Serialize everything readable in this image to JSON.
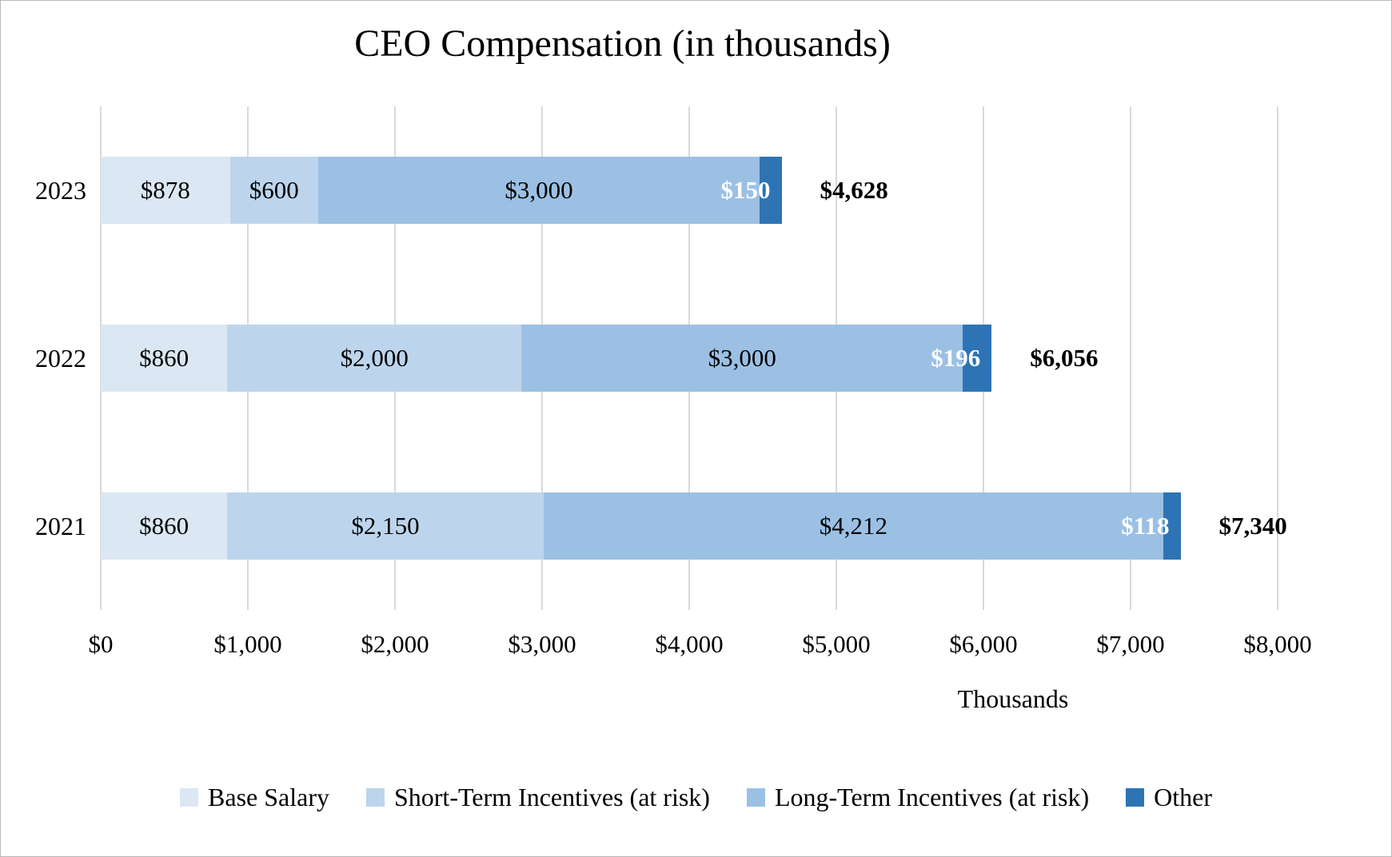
{
  "title": "CEO Compensation (in thousands)",
  "colors": {
    "base_salary": "#dbe7f3",
    "short_term": "#bdd5ec",
    "long_term": "#9cc0e3",
    "other": "#2e74b5",
    "gridline": "#d9d9d9",
    "inside_end_label": "#ffffff",
    "text": "#000000"
  },
  "chart_data": {
    "type": "bar",
    "orientation": "horizontal",
    "stacked": true,
    "title": "CEO Compensation (in thousands)",
    "categories": [
      "2023",
      "2022",
      "2021"
    ],
    "series": [
      {
        "name": "Base Salary",
        "color": "#dbe7f3",
        "values": [
          878,
          860,
          860
        ],
        "label_placement": "inside-center",
        "label_color": "#000000"
      },
      {
        "name": "Short-Term Incentives (at risk)",
        "color": "#bdd5ec",
        "values": [
          600,
          2000,
          2150
        ],
        "label_placement": "inside-center",
        "label_color": "#000000"
      },
      {
        "name": "Long-Term Incentives (at risk)",
        "color": "#9cc0e3",
        "values": [
          3000,
          3000,
          4212
        ],
        "label_placement": "inside-center",
        "label_color": "#000000"
      },
      {
        "name": "Other",
        "color": "#2e74b5",
        "values": [
          150,
          196,
          118
        ],
        "label_placement": "inside-end",
        "label_color": "#ffffff"
      }
    ],
    "segment_labels": [
      [
        "$878",
        "$600",
        "$3,000",
        "$150"
      ],
      [
        "$860",
        "$2,000",
        "$3,000",
        "$196"
      ],
      [
        "$860",
        "$2,150",
        "$4,212",
        "$118"
      ]
    ],
    "totals": [
      4628,
      6056,
      7340
    ],
    "total_labels": [
      "$4,628",
      "$6,056",
      "$7,340"
    ],
    "xlim": [
      0,
      8000
    ],
    "x_tick_values": [
      0,
      1000,
      2000,
      3000,
      4000,
      5000,
      6000,
      7000,
      8000
    ],
    "x_tick_labels": [
      "$0",
      "$1,000",
      "$2,000",
      "$3,000",
      "$4,000",
      "$5,000",
      "$6,000",
      "$7,000",
      "$8,000"
    ],
    "axis_note": "Thousands",
    "grid": true,
    "legend_position": "bottom"
  }
}
